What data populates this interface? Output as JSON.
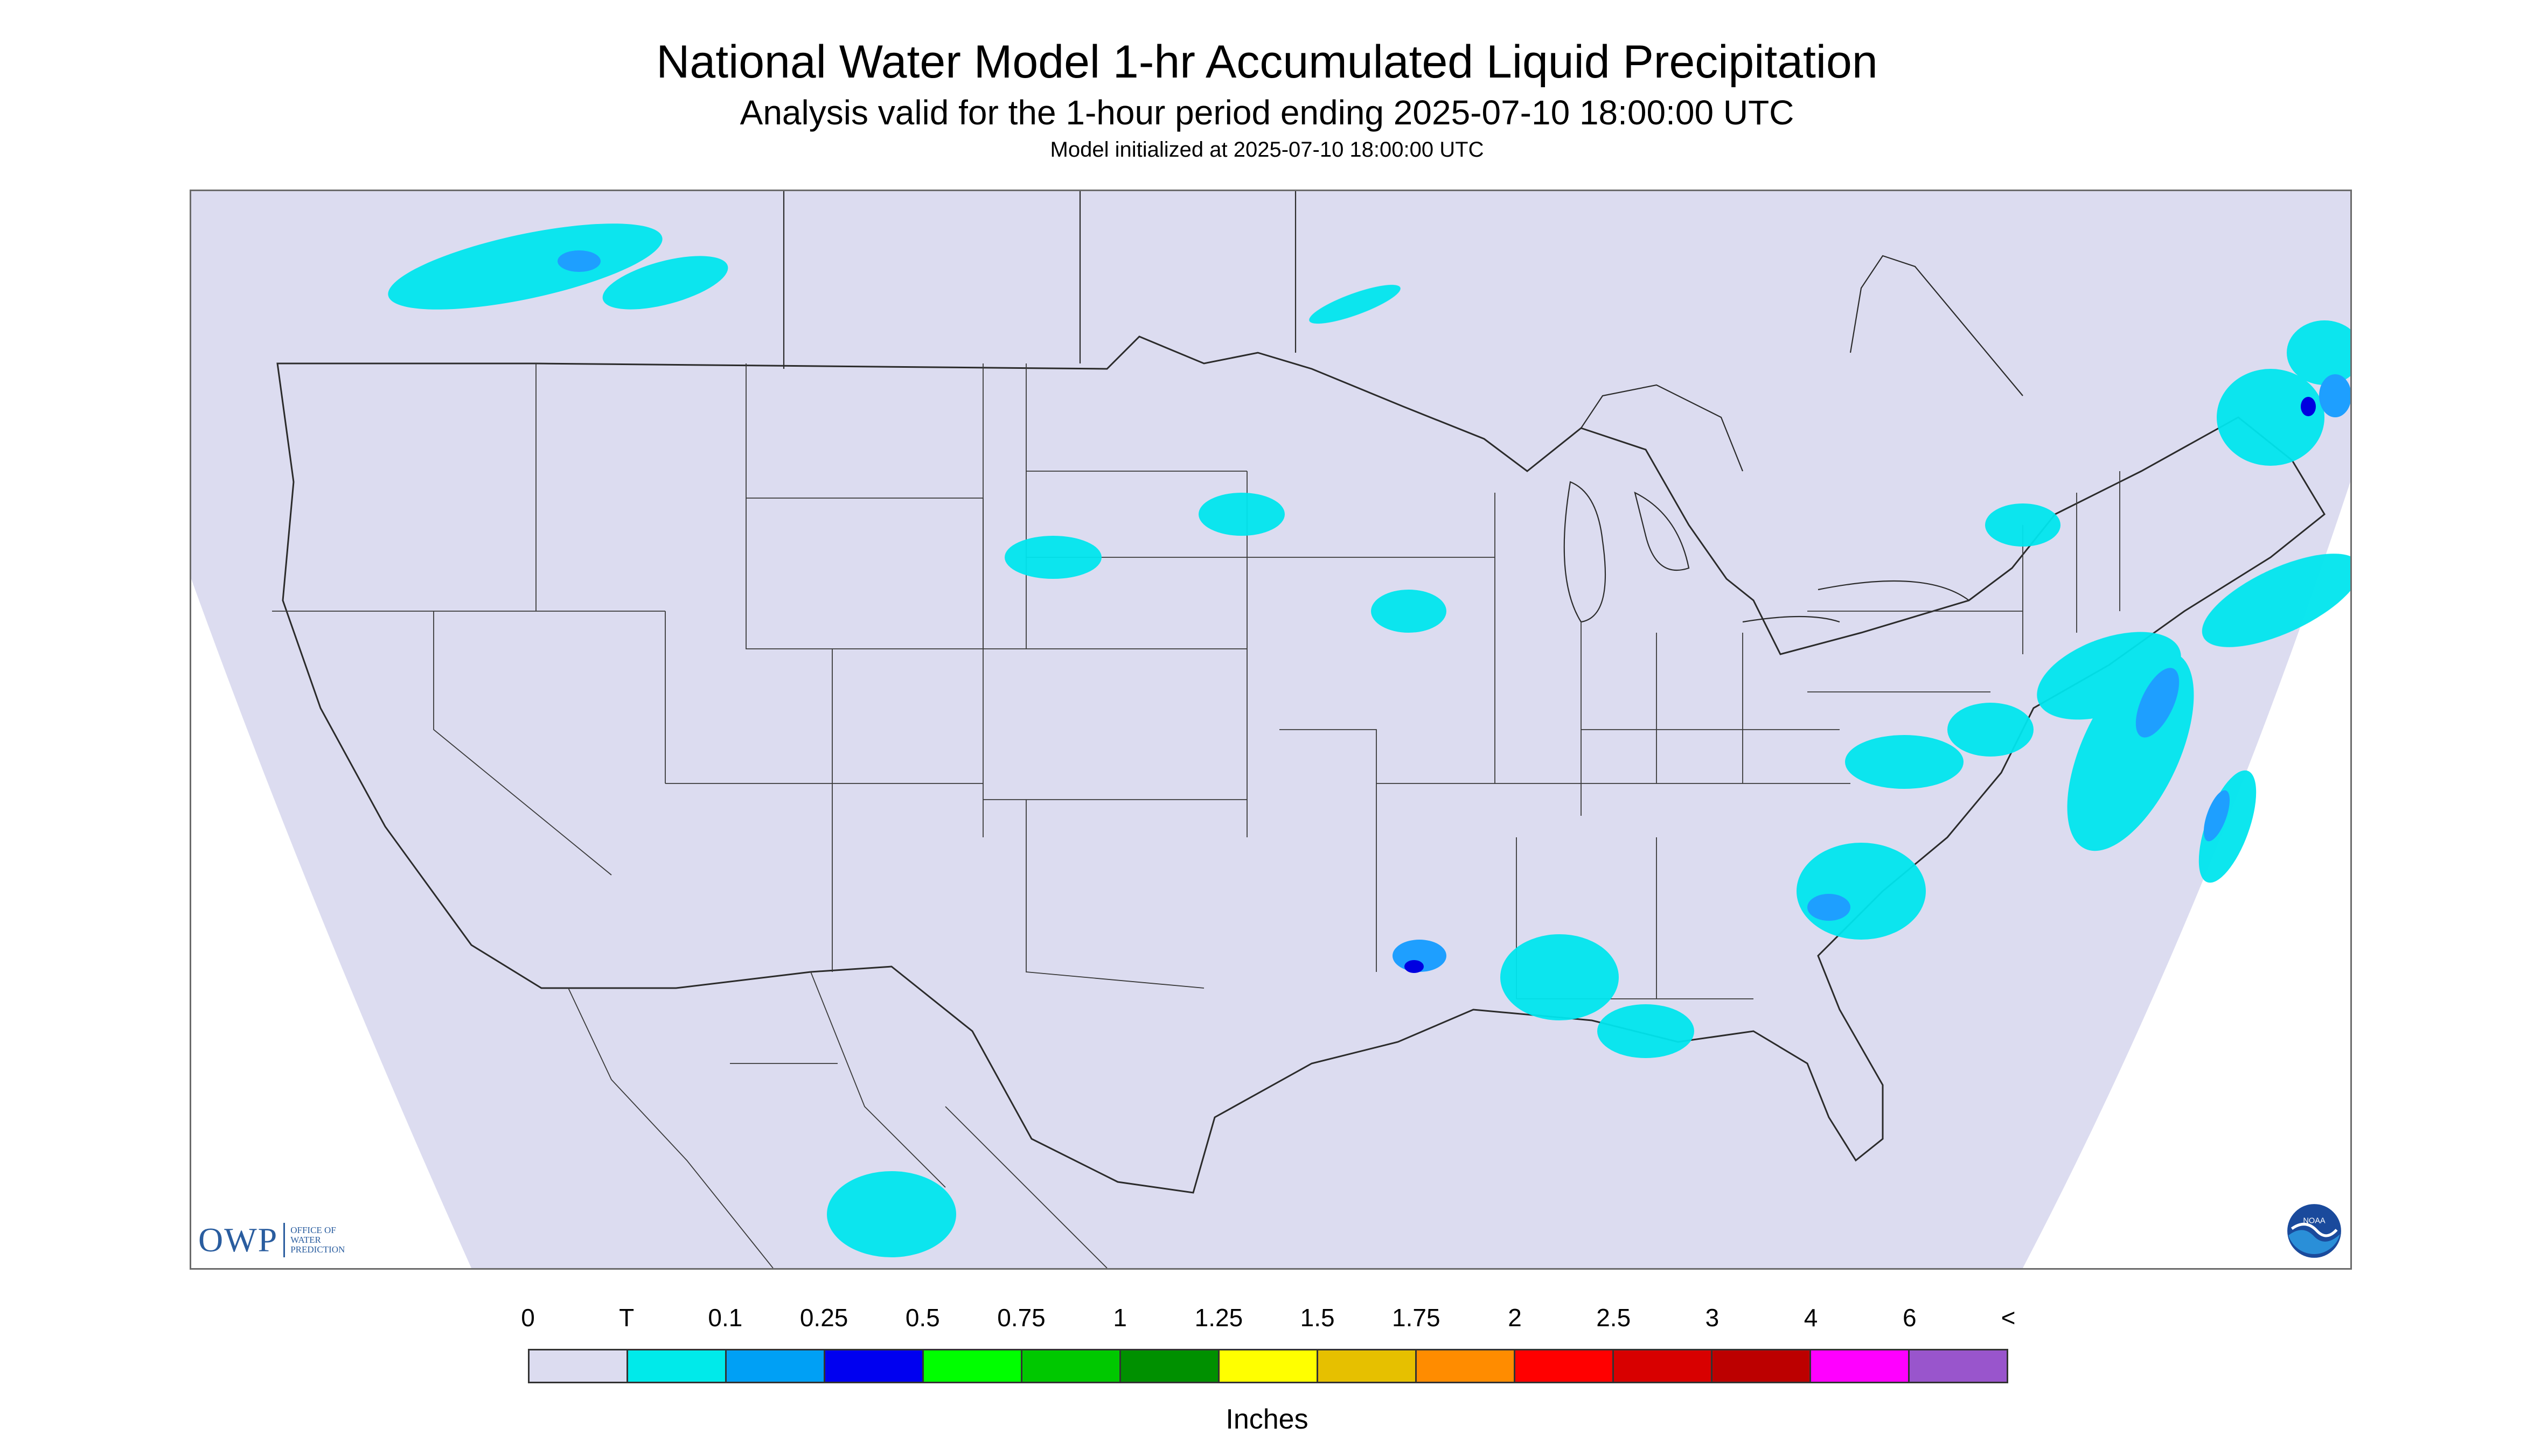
{
  "title": "National Water Model 1-hr Accumulated Liquid Precipitation",
  "subtitle": "Analysis valid for the 1-hour period ending 2025-07-10 18:00:00 UTC",
  "init": "Model initialized at 2025-07-10 18:00:00 UTC",
  "logo_left": {
    "big": "OWP",
    "line1": "OFFICE OF",
    "line2": "WATER",
    "line3": "PREDICTION"
  },
  "logo_right": {
    "text": "NOAA"
  },
  "legend": {
    "labels": [
      "0",
      "T",
      "0.1",
      "0.25",
      "0.5",
      "0.75",
      "1",
      "1.25",
      "1.5",
      "1.75",
      "2",
      "2.5",
      "3",
      "4",
      "6",
      "<"
    ],
    "colors": [
      "#dcdcf0",
      "#00eaea",
      "#00a0f5",
      "#0000f0",
      "#00ff00",
      "#00c800",
      "#009000",
      "#ffff00",
      "#e6c000",
      "#ff8c00",
      "#ff0000",
      "#d80000",
      "#bc0000",
      "#ff00ff",
      "#9955cc"
    ],
    "units": "Inches"
  },
  "colors": {
    "map_fill": "#dcdcf0",
    "light_precip": "#00e5ee",
    "medium_precip": "#1e9fff",
    "heavy_precip": "#0000e0",
    "boundary": "#2b2b2b"
  }
}
